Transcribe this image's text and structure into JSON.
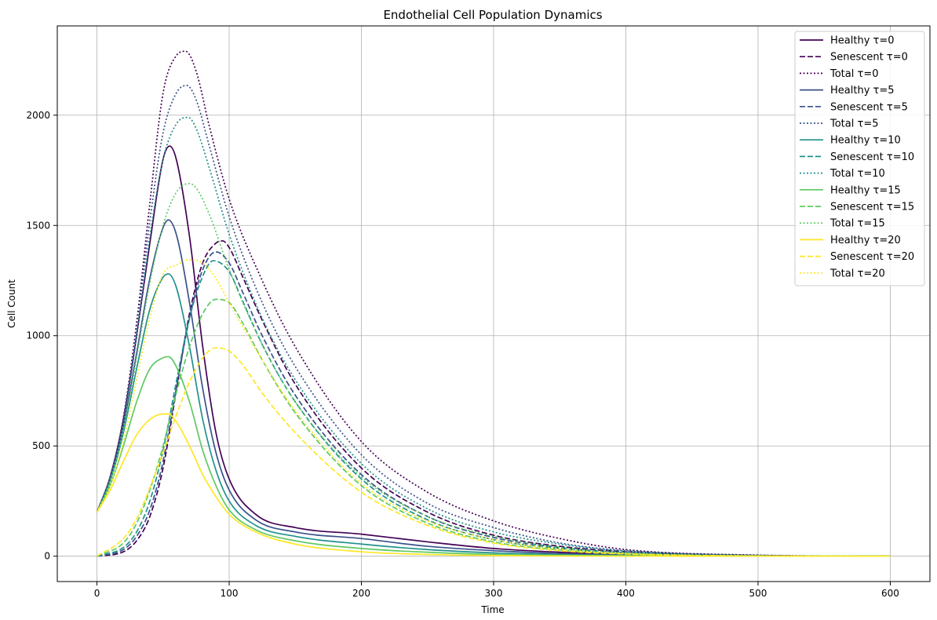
{
  "chart_data": {
    "type": "line",
    "title": "Endothelial Cell Population Dynamics",
    "xlabel": "Time",
    "ylabel": "Cell Count",
    "xlim": [
      -30,
      630
    ],
    "ylim": [
      -115,
      2405
    ],
    "xticks": [
      0,
      100,
      200,
      300,
      400,
      500,
      600
    ],
    "yticks": [
      0,
      500,
      1000,
      1500,
      2000
    ],
    "grid": true,
    "legend_position": "top-right",
    "series": [
      {
        "name": "Healthy τ=0",
        "color": "#440154",
        "style": "solid",
        "x": [
          0,
          10,
          20,
          30,
          40,
          50,
          55,
          60,
          70,
          80,
          90,
          100,
          120,
          150,
          200,
          250,
          300,
          350,
          400,
          500,
          600
        ],
        "y": [
          200,
          360,
          620,
          1000,
          1420,
          1800,
          1860,
          1800,
          1450,
          950,
          560,
          350,
          190,
          130,
          100,
          65,
          35,
          18,
          8,
          2,
          0
        ]
      },
      {
        "name": "Senescent τ=0",
        "color": "#440154",
        "style": "dashed",
        "x": [
          0,
          20,
          30,
          40,
          50,
          60,
          70,
          80,
          90,
          95,
          100,
          110,
          125,
          150,
          200,
          250,
          300,
          350,
          400,
          500,
          600
        ],
        "y": [
          0,
          20,
          70,
          180,
          400,
          750,
          1100,
          1330,
          1420,
          1430,
          1400,
          1270,
          1070,
          780,
          400,
          200,
          95,
          45,
          20,
          3,
          0
        ]
      },
      {
        "name": "Total τ=0",
        "color": "#440154",
        "style": "dotted",
        "x": [
          0,
          10,
          20,
          30,
          40,
          50,
          60,
          67,
          75,
          85,
          100,
          125,
          150,
          200,
          250,
          300,
          350,
          400,
          500,
          600
        ],
        "y": [
          200,
          360,
          630,
          1060,
          1600,
          2100,
          2270,
          2290,
          2200,
          1950,
          1620,
          1250,
          950,
          520,
          290,
          160,
          80,
          30,
          5,
          0
        ]
      },
      {
        "name": "Healthy τ=5",
        "color": "#3b528b",
        "style": "solid",
        "x": [
          0,
          10,
          20,
          30,
          40,
          50,
          54,
          60,
          70,
          80,
          90,
          100,
          120,
          150,
          200,
          250,
          300,
          350,
          400,
          500,
          600
        ],
        "y": [
          200,
          350,
          590,
          920,
          1260,
          1490,
          1525,
          1460,
          1150,
          760,
          470,
          300,
          165,
          110,
          80,
          45,
          25,
          12,
          5,
          1,
          0
        ]
      },
      {
        "name": "Senescent τ=5",
        "color": "#3b528b",
        "style": "dashed",
        "x": [
          0,
          20,
          30,
          40,
          50,
          60,
          70,
          80,
          90,
          100,
          110,
          125,
          150,
          200,
          250,
          300,
          350,
          400,
          500,
          600
        ],
        "y": [
          0,
          30,
          90,
          210,
          430,
          760,
          1080,
          1300,
          1380,
          1330,
          1200,
          1000,
          730,
          370,
          180,
          85,
          40,
          16,
          2,
          0
        ]
      },
      {
        "name": "Total τ=5",
        "color": "#3b528b",
        "style": "dotted",
        "x": [
          0,
          10,
          20,
          30,
          40,
          50,
          60,
          68,
          75,
          85,
          100,
          125,
          150,
          200,
          250,
          300,
          350,
          400,
          500,
          600
        ],
        "y": [
          200,
          360,
          620,
          1030,
          1520,
          1920,
          2100,
          2135,
          2070,
          1860,
          1540,
          1150,
          860,
          460,
          240,
          130,
          60,
          25,
          4,
          0
        ]
      },
      {
        "name": "Healthy τ=10",
        "color": "#21918c",
        "style": "solid",
        "x": [
          0,
          10,
          20,
          30,
          40,
          50,
          54,
          60,
          70,
          80,
          90,
          100,
          120,
          150,
          200,
          250,
          300,
          350,
          400,
          500,
          600
        ],
        "y": [
          200,
          340,
          560,
          850,
          1120,
          1265,
          1280,
          1220,
          950,
          620,
          390,
          250,
          140,
          90,
          55,
          30,
          15,
          7,
          3,
          0,
          0
        ]
      },
      {
        "name": "Senescent τ=10",
        "color": "#21918c",
        "style": "dashed",
        "x": [
          0,
          20,
          30,
          40,
          50,
          60,
          70,
          80,
          88,
          100,
          110,
          125,
          150,
          200,
          250,
          300,
          350,
          400,
          500,
          600
        ],
        "y": [
          0,
          40,
          110,
          250,
          480,
          790,
          1080,
          1270,
          1340,
          1290,
          1160,
          960,
          700,
          350,
          165,
          75,
          35,
          14,
          2,
          0
        ]
      },
      {
        "name": "Total τ=10",
        "color": "#21918c",
        "style": "dotted",
        "x": [
          0,
          10,
          20,
          30,
          40,
          50,
          60,
          69,
          75,
          85,
          100,
          125,
          150,
          200,
          250,
          300,
          350,
          400,
          500,
          600
        ],
        "y": [
          200,
          350,
          600,
          1000,
          1450,
          1800,
          1960,
          1990,
          1940,
          1760,
          1460,
          1080,
          800,
          420,
          215,
          110,
          55,
          22,
          3,
          0
        ]
      },
      {
        "name": "Healthy τ=15",
        "color": "#5ec962",
        "style": "solid",
        "x": [
          0,
          10,
          20,
          30,
          40,
          50,
          54,
          60,
          70,
          80,
          90,
          100,
          120,
          150,
          200,
          250,
          300,
          350,
          400,
          500,
          600
        ],
        "y": [
          200,
          320,
          500,
          700,
          850,
          900,
          905,
          860,
          700,
          480,
          320,
          210,
          120,
          70,
          35,
          18,
          8,
          4,
          2,
          0,
          0
        ]
      },
      {
        "name": "Senescent τ=15",
        "color": "#5ec962",
        "style": "dashed",
        "x": [
          0,
          20,
          30,
          40,
          50,
          60,
          70,
          80,
          90,
          100,
          110,
          125,
          150,
          200,
          250,
          300,
          350,
          400,
          500,
          600
        ],
        "y": [
          0,
          60,
          150,
          300,
          500,
          740,
          950,
          1100,
          1165,
          1150,
          1060,
          890,
          650,
          320,
          150,
          65,
          28,
          11,
          1,
          0
        ]
      },
      {
        "name": "Total τ=15",
        "color": "#5ec962",
        "style": "dotted",
        "x": [
          0,
          10,
          20,
          30,
          40,
          50,
          60,
          70,
          75,
          85,
          100,
          125,
          150,
          200,
          250,
          300,
          350,
          400,
          500,
          600
        ],
        "y": [
          200,
          340,
          570,
          900,
          1240,
          1500,
          1650,
          1690,
          1670,
          1550,
          1300,
          960,
          700,
          360,
          180,
          90,
          40,
          15,
          2,
          0
        ]
      },
      {
        "name": "Healthy τ=20",
        "color": "#fde725",
        "style": "solid",
        "x": [
          0,
          10,
          20,
          30,
          40,
          50,
          54,
          60,
          70,
          80,
          90,
          100,
          120,
          150,
          200,
          250,
          300,
          350,
          400,
          500,
          600
        ],
        "y": [
          200,
          300,
          430,
          550,
          620,
          645,
          645,
          610,
          500,
          370,
          270,
          190,
          110,
          55,
          20,
          8,
          3,
          1,
          0,
          0,
          0
        ]
      },
      {
        "name": "Senescent τ=20",
        "color": "#fde725",
        "style": "dashed",
        "x": [
          0,
          20,
          30,
          40,
          50,
          60,
          70,
          80,
          90,
          100,
          110,
          125,
          150,
          200,
          250,
          300,
          350,
          400,
          500,
          600
        ],
        "y": [
          0,
          80,
          170,
          310,
          470,
          640,
          790,
          900,
          945,
          930,
          870,
          740,
          560,
          290,
          140,
          60,
          25,
          10,
          1,
          0
        ]
      },
      {
        "name": "Total τ=20",
        "color": "#fde725",
        "style": "dotted",
        "x": [
          0,
          10,
          20,
          30,
          40,
          50,
          60,
          70,
          80,
          90,
          100,
          125,
          150,
          200,
          250,
          300,
          350,
          400,
          500,
          600
        ],
        "y": [
          200,
          320,
          520,
          800,
          1080,
          1280,
          1320,
          1345,
          1330,
          1260,
          1150,
          890,
          660,
          330,
          160,
          75,
          32,
          12,
          1,
          0
        ]
      }
    ]
  }
}
